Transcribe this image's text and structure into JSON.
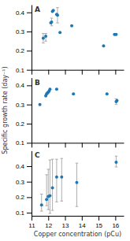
{
  "chart_data": [
    {
      "type": "scatter",
      "title": "A",
      "x": [
        11.7,
        11.85,
        12.15,
        12.2,
        12.25,
        12.3,
        12.5,
        12.55,
        12.7,
        13.4,
        15.3,
        15.95,
        16.05
      ],
      "values": [
        0.265,
        0.275,
        0.345,
        0.35,
        0.405,
        0.41,
        0.39,
        0.385,
        0.295,
        0.33,
        0.225,
        0.285,
        0.285
      ],
      "yerr_lo": [
        0.025,
        0.025,
        null,
        0.02,
        null,
        null,
        null,
        0.04,
        null,
        null,
        null,
        null,
        null
      ],
      "yerr_hi": [
        0.025,
        0.015,
        null,
        0.02,
        null,
        null,
        null,
        0.04,
        null,
        null,
        null,
        null,
        null
      ],
      "xlim": [
        11.0,
        16.5
      ],
      "xticks": [
        11,
        12,
        13,
        14,
        15,
        16
      ],
      "ylim": [
        0.1,
        0.44
      ],
      "yticks": [
        0.1,
        0.2,
        0.3,
        0.4
      ],
      "tick_labels": "y"
    },
    {
      "type": "scatter",
      "title": "B",
      "ylabel": "Specific growth rate (day⁻¹)",
      "x": [
        11.5,
        11.85,
        11.9,
        11.95,
        12.0,
        12.05,
        12.1,
        12.5,
        13.5,
        15.5,
        16.05,
        16.1
      ],
      "values": [
        0.3,
        0.345,
        0.355,
        0.36,
        0.365,
        0.37,
        0.38,
        0.38,
        0.355,
        0.355,
        0.315,
        0.32
      ],
      "yerr_lo": [
        null,
        null,
        null,
        null,
        null,
        null,
        null,
        null,
        null,
        null,
        0.015,
        null
      ],
      "yerr_hi": [
        null,
        null,
        null,
        null,
        null,
        null,
        null,
        null,
        null,
        null,
        0.015,
        null
      ],
      "xlim": [
        11.0,
        16.5
      ],
      "xticks": [
        11,
        12,
        13,
        14,
        15,
        16
      ],
      "ylim": [
        0.1,
        0.44
      ],
      "yticks": [
        0.1,
        0.2,
        0.3,
        0.4
      ],
      "tick_labels": "y"
    },
    {
      "type": "scatter",
      "title": "C",
      "xlabel": "Copper concentration (pCu)",
      "x": [
        11.6,
        11.9,
        12.0,
        12.1,
        12.25,
        12.5,
        12.8,
        13.7,
        16.05
      ],
      "values": [
        0.15,
        0.185,
        0.205,
        0.21,
        0.26,
        0.33,
        0.33,
        0.295,
        0.425
      ],
      "yerr_lo": [
        0.04,
        0.04,
        0.085,
        0.115,
        0.145,
        0.16,
        0.155,
        0.155,
        0.03
      ],
      "yerr_hi": [
        0.07,
        0.16,
        0.175,
        0.23,
        0.185,
        0.115,
        0.12,
        0.125,
        0.04
      ],
      "xlim": [
        11.0,
        16.5
      ],
      "xticks": [
        11,
        12,
        13,
        14,
        15,
        16
      ],
      "ylim": [
        0.08,
        0.5
      ],
      "yticks": [
        0.1,
        0.2,
        0.3,
        0.4
      ]
    }
  ]
}
